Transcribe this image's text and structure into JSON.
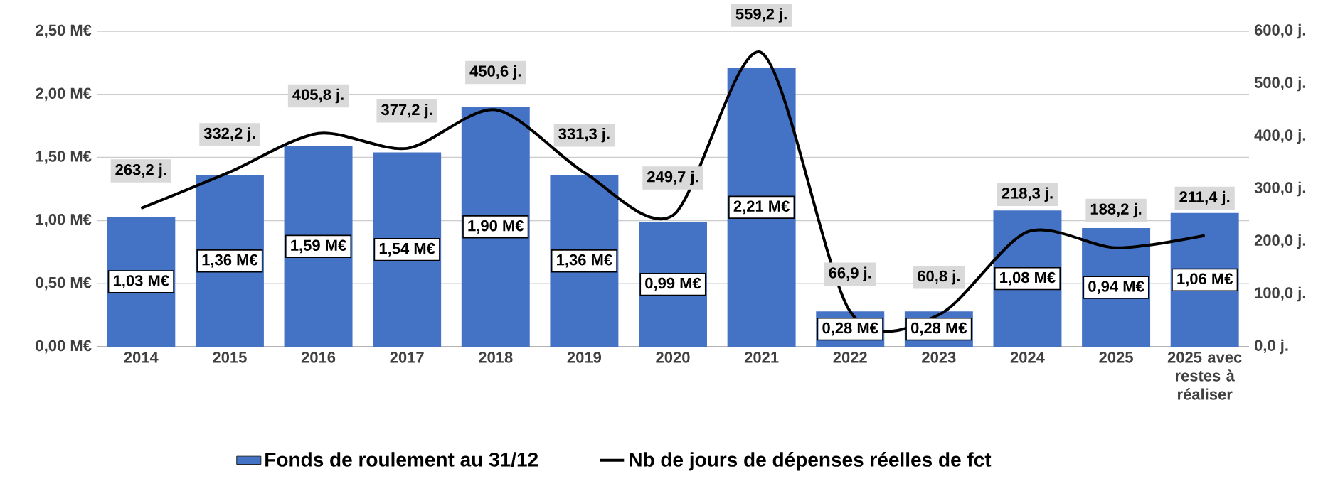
{
  "chart_data": {
    "type": "bar",
    "categories": [
      "2014",
      "2015",
      "2016",
      "2017",
      "2018",
      "2019",
      "2020",
      "2021",
      "2022",
      "2023",
      "2024",
      "2025",
      "2025 avec restes à réaliser"
    ],
    "series": [
      {
        "name": "Fonds de roulement au 31/12",
        "color": "#4472c4",
        "values": [
          1.03,
          1.36,
          1.59,
          1.54,
          1.9,
          1.36,
          0.99,
          2.21,
          0.28,
          0.28,
          1.08,
          0.94,
          1.06
        ],
        "value_labels": [
          "1,03 M€",
          "1,36 M€",
          "1,59 M€",
          "1,54 M€",
          "1,90 M€",
          "1,36 M€",
          "0,99 M€",
          "2,21 M€",
          "0,28 M€",
          "0,28 M€",
          "1,08 M€",
          "0,94 M€",
          "1,06 M€"
        ]
      },
      {
        "name": "Nb de jours de dépenses réelles de fct",
        "type": "line",
        "axis": "y2",
        "color": "#000000",
        "values": [
          263.2,
          332.2,
          405.8,
          377.2,
          450.6,
          331.3,
          249.7,
          559.2,
          66.9,
          60.8,
          218.3,
          188.2,
          211.4
        ],
        "value_labels": [
          "263,2 j.",
          "332,2 j.",
          "405,8 j.",
          "377,2 j.",
          "450,6 j.",
          "331,3 j.",
          "249,7 j.",
          "559,2 j.",
          "66,9 j.",
          "60,8 j.",
          "218,3 j.",
          "188,2 j.",
          "211,4 j."
        ]
      }
    ],
    "ylim": [
      0,
      2.5
    ],
    "yticks": [
      {
        "value": 0,
        "label": "0,00 M€"
      },
      {
        "value": 0.5,
        "label": "0,50 M€"
      },
      {
        "value": 1,
        "label": "1,00 M€"
      },
      {
        "value": 1.5,
        "label": "1,50 M€"
      },
      {
        "value": 2,
        "label": "2,00 M€"
      },
      {
        "value": 2.5,
        "label": "2,50 M€"
      }
    ],
    "y2lim": [
      0,
      600
    ],
    "y2ticks": [
      {
        "value": 0,
        "label": "0,0 j."
      },
      {
        "value": 100,
        "label": "100,0 j."
      },
      {
        "value": 200,
        "label": "200,0 j."
      },
      {
        "value": 300,
        "label": "300,0 j."
      },
      {
        "value": 400,
        "label": "400,0 j."
      },
      {
        "value": 500,
        "label": "500,0 j."
      },
      {
        "value": 600,
        "label": "600,0 j."
      }
    ],
    "grid": "y",
    "legend": "bottom"
  }
}
